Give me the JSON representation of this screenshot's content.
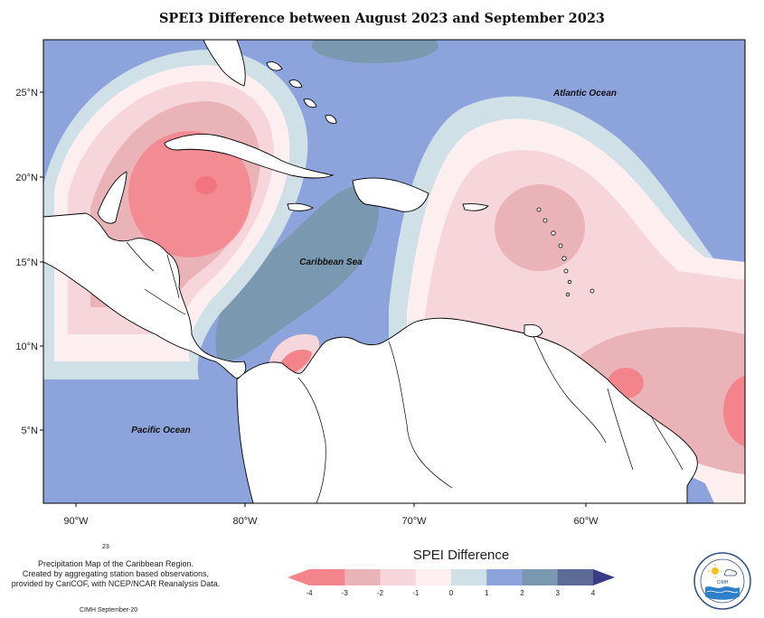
{
  "title": "SPEI3 Difference between August 2023 and September 2023",
  "lat_labels": [
    "25°N",
    "20°N",
    "15°N",
    "10°N",
    "5°N"
  ],
  "lon_labels": [
    "90°W",
    "80°W",
    "70°W",
    "60°W"
  ],
  "regions": {
    "atlantic": "Atlantic Ocean",
    "caribbean": "Caribbean Sea",
    "pacific": "Pacific Ocean"
  },
  "note": {
    "number": "23",
    "line1": "Precipitation Map of the Caribbean Region.",
    "line2": "Created by aggregating station based observations,",
    "line3": "provided by CariCOF, with NCEP/NCAR Reanalysis Data.",
    "credit": "CIMH September-20"
  },
  "legend": {
    "title": "SPEI Difference",
    "ticks": [
      "-4",
      "-3",
      "-2",
      "-1",
      "0",
      "1",
      "2",
      "3",
      "4"
    ],
    "colors": [
      "#f4848c",
      "#e9b3b8",
      "#f6d6da",
      "#fdeef0",
      "#cfe0e6",
      "#8da3dc",
      "#7a98b0",
      "#5c6c96"
    ],
    "under_color": "#f4848c",
    "over_color": "#3a3b86"
  },
  "colors": {
    "land": "#ffffff",
    "border": "#000000"
  }
}
